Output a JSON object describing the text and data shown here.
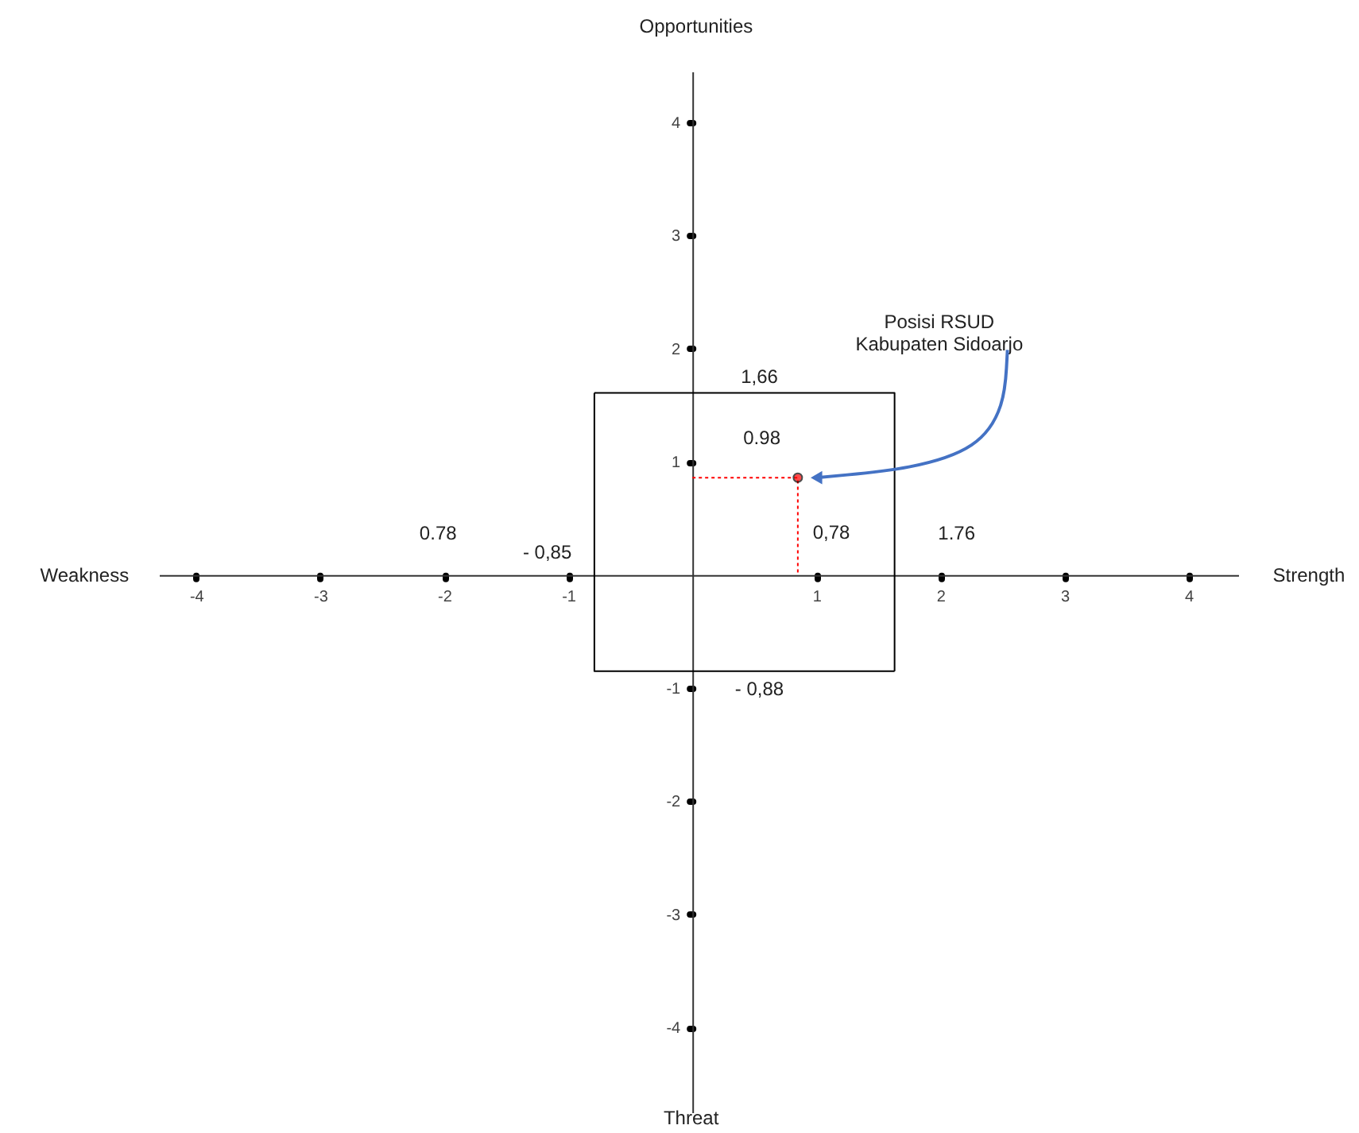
{
  "chart_data": {
    "type": "scatter",
    "xlim": [
      -4.3,
      4.4
    ],
    "ylim": [
      -4.75,
      4.45
    ],
    "xticks": [
      -4,
      -3,
      -2,
      -1,
      1,
      2,
      3,
      4
    ],
    "yticks": [
      -4,
      -3,
      -2,
      -1,
      1,
      2,
      3,
      4
    ],
    "series": [
      {
        "type": "line",
        "color": "#000000",
        "line_style": "solid",
        "x": [
          -0.79,
          1.63,
          1.63
        ],
        "values": [
          1.61,
          1.61,
          -0.85
        ]
      },
      {
        "type": "line",
        "color": "#000000",
        "line_style": "solid",
        "x": [
          -0.79,
          -0.79,
          1.63
        ],
        "values": [
          1.61,
          -0.85,
          -0.85
        ]
      },
      {
        "type": "line",
        "color": "#ff0000",
        "line_style": "dotted",
        "x": [
          0,
          0.85,
          0.85
        ],
        "values": [
          0.86,
          0.86,
          0
        ]
      },
      {
        "type": "scatter",
        "color": "#ff0000",
        "marker": "circle",
        "x": [
          0.85
        ],
        "values": [
          0.86
        ]
      }
    ],
    "annotations": [
      "0.98",
      "1,66",
      "0,78",
      "1.76",
      "0.78",
      "- 0,85",
      "- 0,88",
      "Posisi RSUD\nKabupaten Sidoarjo",
      "Weakness",
      "Strength",
      "Opportunities",
      "Threat"
    ]
  }
}
